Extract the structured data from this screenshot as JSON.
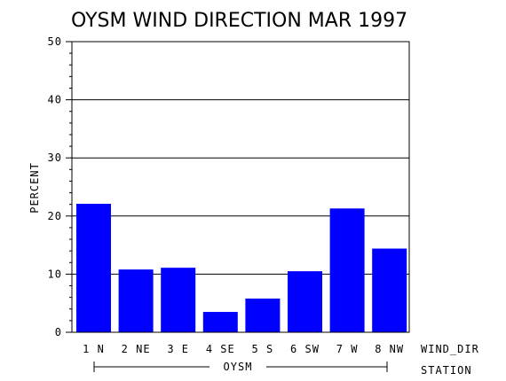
{
  "chart_data": {
    "type": "bar",
    "title": "OYSM WIND DIRECTION MAR 1997",
    "ylabel": "PERCENT",
    "xlabel": "WIND_DIR",
    "group_label": "STATION",
    "group_name": "OYSM",
    "ylim": [
      0,
      50
    ],
    "yticks": [
      0,
      10,
      20,
      30,
      40,
      50
    ],
    "grid": true,
    "categories": [
      "1 N",
      "2 NE",
      "3 E",
      "4 SE",
      "5 S",
      "6 SW",
      "7 W",
      "8 NW"
    ],
    "values": [
      22.1,
      10.8,
      11.1,
      3.5,
      5.8,
      10.5,
      21.3,
      14.4
    ],
    "bar_color": "#0000ff"
  }
}
